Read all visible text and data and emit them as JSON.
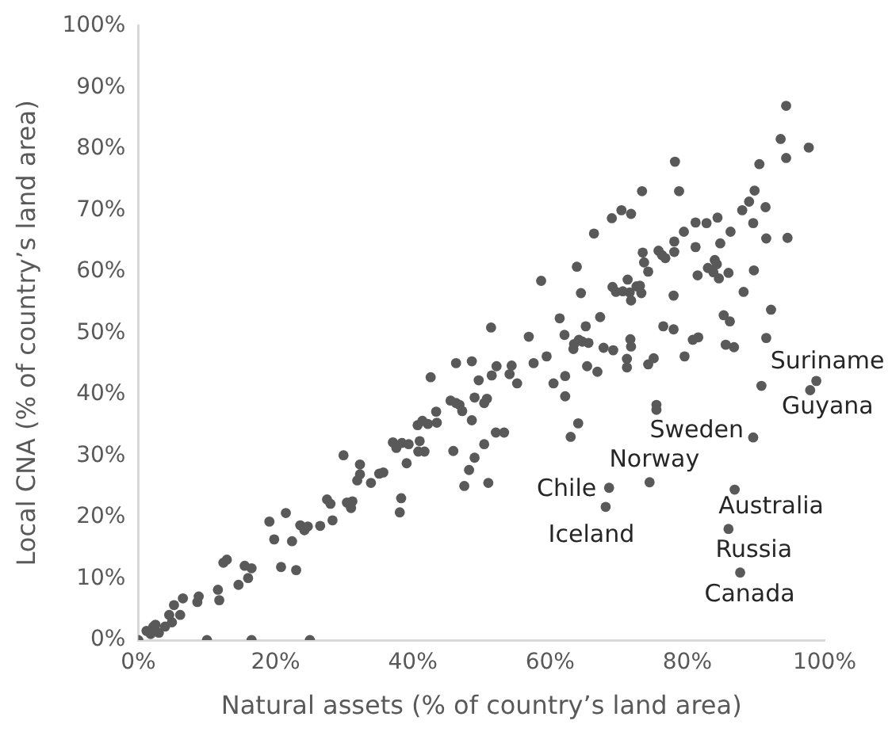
{
  "chart_data": {
    "type": "scatter",
    "xlabel": "Natural assets (% of country’s land area)",
    "ylabel": "Local CNA (% of country’s land area)",
    "xlim": [
      0,
      100
    ],
    "ylim": [
      0,
      100
    ],
    "xticks": [
      {
        "value": 0,
        "label": "0%"
      },
      {
        "value": 20,
        "label": "20%"
      },
      {
        "value": 40,
        "label": "40%"
      },
      {
        "value": 60,
        "label": "60%"
      },
      {
        "value": 80,
        "label": "80%"
      },
      {
        "value": 100,
        "label": "100%"
      }
    ],
    "yticks": [
      {
        "value": 0,
        "label": "0%"
      },
      {
        "value": 10,
        "label": "10%"
      },
      {
        "value": 20,
        "label": "20%"
      },
      {
        "value": 30,
        "label": "30%"
      },
      {
        "value": 40,
        "label": "40%"
      },
      {
        "value": 50,
        "label": "50%"
      },
      {
        "value": 60,
        "label": "60%"
      },
      {
        "value": 70,
        "label": "70%"
      },
      {
        "value": 80,
        "label": "80%"
      },
      {
        "value": 90,
        "label": "90%"
      },
      {
        "value": 100,
        "label": "100%"
      }
    ],
    "grid": false,
    "legend": false,
    "marker": "circle",
    "series": [
      {
        "color": "#595959",
        "x": [
          0,
          10,
          16.5,
          25,
          1.2,
          2.2,
          3,
          2.5,
          1.8,
          3.9,
          4.9,
          4.5,
          5.2,
          6.1,
          6.5,
          8.6,
          8.8,
          11.6,
          11.8,
          12.4,
          12.9,
          14.6,
          15.5,
          16.5,
          16,
          19.1,
          19.8,
          20.8,
          21.5,
          22.4,
          23,
          23.6,
          24.2,
          24.7,
          26.5,
          28.3,
          27.5,
          28,
          29.9,
          30.4,
          31.2,
          31,
          31.9,
          32.3,
          32.3,
          33.9,
          35.1,
          35.7,
          38.1,
          38.3,
          37.1,
          37.6,
          38.4,
          39.4,
          39.1,
          41,
          40.8,
          41.7,
          42.6,
          40.7,
          41.4,
          42.2,
          43.4,
          43.5,
          45.5,
          46.3,
          46.8,
          47.2,
          48.6,
          49,
          45.9,
          47.5,
          48.2,
          49,
          66.4,
          58.7,
          63.9,
          64.5,
          67.3,
          61.4,
          65.2,
          51.4,
          56.9,
          62.1,
          63.5,
          64.2,
          64.7,
          65.6,
          63.4,
          67.8,
          59.5,
          57.6,
          65.4,
          66.9,
          54.4,
          54.1,
          55.2,
          52.2,
          48.6,
          46.3,
          51.5,
          49.6,
          60.5,
          62.2,
          62.2,
          64.1,
          63,
          50.4,
          50.8,
          52.1,
          53.3,
          50.4,
          51,
          94.4,
          93.6,
          97.7,
          94.4,
          90.5,
          78.2,
          78.8,
          73.4,
          89.8,
          89,
          88,
          91.4,
          89.6,
          91.5,
          94.6,
          70.4,
          69,
          71.8,
          81.2,
          82.8,
          84.4,
          79.5,
          86.3,
          78.1,
          81.2,
          84.8,
          73.5,
          75.8,
          76.3,
          76.8,
          78.1,
          73.7,
          74.3,
          84,
          84.3,
          83,
          83.8,
          84.6,
          86,
          81.5,
          89.7,
          88.2,
          92.2,
          85.3,
          86.2,
          91.5,
          69.1,
          69.6,
          70.6,
          71.3,
          71.6,
          71.8,
          72.6,
          73.1,
          73.3,
          78,
          71.7,
          76.5,
          78,
          80.8,
          81.6,
          71.8,
          69.2,
          71.2,
          71.2,
          75.1,
          74.3,
          79.6,
          85.6,
          86.8,
          75.5,
          75.5,
          90.8,
          98.8,
          97.9,
          89.6,
          74.5,
          68.6,
          68.1,
          86.9,
          86,
          87.7
        ],
        "values": [
          0,
          0,
          0,
          0,
          1.5,
          2.2,
          1.2,
          2.5,
          1,
          2.2,
          2.9,
          4.1,
          5.7,
          4.1,
          6.8,
          6.2,
          7.1,
          8.2,
          6.5,
          12.6,
          13.1,
          9,
          12.1,
          11.7,
          10.1,
          19.3,
          16.4,
          11.9,
          20.7,
          16.1,
          11.4,
          18.7,
          17.9,
          18.5,
          18.6,
          19.5,
          22.9,
          22.2,
          30.1,
          22.4,
          22.6,
          21.5,
          26,
          27,
          28.6,
          25.6,
          27.1,
          27.3,
          20.8,
          23.1,
          32.2,
          31.3,
          32.1,
          31.9,
          28.8,
          32.4,
          30.7,
          30.7,
          42.8,
          35,
          35.7,
          35.2,
          37.2,
          35.4,
          39,
          38.6,
          38.3,
          37.3,
          35.8,
          39.5,
          30.8,
          25.1,
          27.7,
          29.7,
          66.2,
          58.5,
          60.8,
          56.5,
          52.6,
          52.4,
          51.1,
          50.9,
          49.4,
          49.7,
          48.2,
          48.9,
          48.6,
          48.4,
          47.4,
          47.6,
          46.2,
          45.1,
          44.6,
          43.7,
          44.7,
          43.3,
          41.8,
          44.6,
          45.4,
          45.1,
          43.1,
          42.3,
          41.8,
          43,
          39.7,
          35.3,
          33.1,
          38.6,
          39.3,
          33.8,
          33.8,
          31.9,
          25.6,
          87,
          81.6,
          80.2,
          78.5,
          77.5,
          77.9,
          73.1,
          73.1,
          73.2,
          71.4,
          70,
          70.5,
          67.9,
          65.4,
          65.5,
          70,
          68.7,
          69.4,
          68,
          67.9,
          68.8,
          66.5,
          66.5,
          64.9,
          64,
          64.6,
          63.1,
          63.4,
          62.7,
          62.2,
          63.2,
          61.5,
          60,
          61.9,
          61.2,
          60.6,
          59.9,
          58.9,
          59.8,
          59.4,
          60.2,
          56.7,
          53.8,
          52.9,
          51.9,
          49.2,
          57.5,
          56.7,
          56.8,
          58.7,
          56.6,
          55.3,
          57.6,
          57.7,
          56.5,
          56.1,
          49,
          51.1,
          50.6,
          48.9,
          49.3,
          47.8,
          47.2,
          45.8,
          44.4,
          45.9,
          44.9,
          46.2,
          48.1,
          47.7,
          38.3,
          37.5,
          41.4,
          42.2,
          40.7,
          33,
          25.7,
          24.8,
          21.7,
          24.5,
          18.1,
          11
        ]
      }
    ],
    "annotations": [
      {
        "text": "Suriname",
        "x": 98.8,
        "y": 42.2
      },
      {
        "text": "Guyana",
        "x": 97.9,
        "y": 40.7
      },
      {
        "text": "Sweden",
        "x": 89.6,
        "y": 33
      },
      {
        "text": "Norway",
        "x": 74.5,
        "y": 25.7
      },
      {
        "text": "Chile",
        "x": 68.6,
        "y": 24.8
      },
      {
        "text": "Iceland",
        "x": 68.1,
        "y": 21.7
      },
      {
        "text": "Australia",
        "x": 86.9,
        "y": 24.5
      },
      {
        "text": "Russia",
        "x": 86,
        "y": 18.1
      },
      {
        "text": "Canada",
        "x": 87.7,
        "y": 11
      }
    ]
  }
}
